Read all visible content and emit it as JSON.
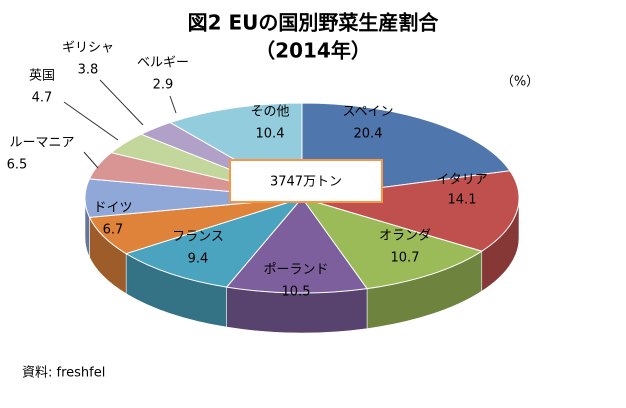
{
  "chart_data": {
    "type": "pie3d",
    "title": "図2 EUの国別野菜生産割合",
    "subtitle": "（2014年）",
    "unit_label": "（%）",
    "center_label": "3747万トン",
    "source": "資料: freshfel",
    "categories": [
      "スペイン",
      "イタリア",
      "オランダ",
      "ポーランド",
      "フランス",
      "ドイツ",
      "ルーマニア",
      "英国",
      "ギリシャ",
      "ベルギー",
      "その他"
    ],
    "values": [
      20.4,
      14.1,
      10.7,
      10.5,
      9.4,
      6.7,
      6.5,
      4.7,
      3.8,
      2.9,
      10.4
    ],
    "colors": [
      "#4f76ad",
      "#c0504d",
      "#9bbb59",
      "#7d5f9e",
      "#4aa3bf",
      "#e0833a",
      "#8fa8d8",
      "#d99594",
      "#c3d69b",
      "#b1a0c7",
      "#93cddd"
    ]
  }
}
